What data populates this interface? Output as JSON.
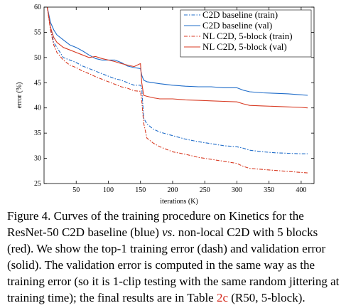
{
  "chart_data": {
    "type": "line",
    "xlabel": "iterations (K)",
    "ylabel": "error (%)",
    "xlim": [
      0,
      420
    ],
    "ylim": [
      25,
      60
    ],
    "x_ticks": [
      50,
      100,
      150,
      200,
      250,
      300,
      350,
      400
    ],
    "y_ticks": [
      25,
      30,
      35,
      40,
      45,
      50,
      55,
      60
    ],
    "grid": false,
    "legend_position": "top-right",
    "series": [
      {
        "name": "C2D baseline (train)",
        "color": "#1f6cc9",
        "style": "dashdot",
        "x": [
          5,
          10,
          15,
          20,
          30,
          40,
          50,
          60,
          70,
          80,
          90,
          100,
          110,
          120,
          130,
          140,
          150,
          152,
          155,
          160,
          170,
          180,
          200,
          220,
          240,
          260,
          280,
          300,
          310,
          320,
          340,
          360,
          380,
          400,
          410
        ],
        "y": [
          60,
          56,
          53,
          52,
          50,
          49.5,
          49,
          48.3,
          47.8,
          47.3,
          46.8,
          46.3,
          45.8,
          45.5,
          45,
          44.5,
          44.5,
          44,
          38,
          36.8,
          35.8,
          35.2,
          34.5,
          33.8,
          33.3,
          32.9,
          32.5,
          32.3,
          32,
          31.6,
          31.3,
          31.1,
          31,
          30.9,
          30.9
        ]
      },
      {
        "name": "C2D baseline (val)",
        "color": "#1f6cc9",
        "style": "solid",
        "x": [
          5,
          10,
          15,
          20,
          30,
          40,
          50,
          60,
          70,
          80,
          90,
          100,
          110,
          120,
          130,
          140,
          150,
          152,
          155,
          160,
          170,
          180,
          200,
          220,
          240,
          260,
          280,
          300,
          310,
          320,
          340,
          360,
          380,
          400,
          410
        ],
        "y": [
          60,
          57,
          55.5,
          54.5,
          53.5,
          52.5,
          52,
          51.3,
          50.5,
          49.8,
          49.5,
          49.5,
          49.5,
          49,
          48.3,
          48,
          47.8,
          46.5,
          45.5,
          45.2,
          45,
          44.8,
          44.5,
          44.3,
          44.2,
          44.2,
          44,
          44,
          43.5,
          43.2,
          43,
          42.9,
          42.8,
          42.6,
          42.5
        ]
      },
      {
        "name": "NL C2D, 5-block (train)",
        "color": "#d83a22",
        "style": "dashdot",
        "x": [
          5,
          10,
          15,
          20,
          30,
          40,
          50,
          60,
          70,
          80,
          90,
          100,
          110,
          120,
          130,
          140,
          150,
          152,
          155,
          160,
          170,
          180,
          200,
          220,
          240,
          260,
          280,
          300,
          310,
          320,
          340,
          360,
          380,
          400,
          410
        ],
        "y": [
          60,
          55.5,
          52.5,
          51,
          49.5,
          48.5,
          48,
          47.3,
          46.8,
          46.2,
          45.7,
          45.2,
          44.7,
          44.2,
          43.9,
          43.4,
          43.3,
          41.5,
          37,
          34,
          33,
          32.3,
          31.3,
          30.8,
          30.2,
          29.8,
          29.4,
          29,
          28.4,
          28,
          27.8,
          27.6,
          27.4,
          27.2,
          27.1
        ]
      },
      {
        "name": "NL C2D, 5-block (val)",
        "color": "#d83a22",
        "style": "solid",
        "x": [
          5,
          10,
          15,
          20,
          30,
          40,
          50,
          60,
          70,
          80,
          90,
          100,
          110,
          120,
          130,
          140,
          150,
          152,
          155,
          160,
          170,
          180,
          200,
          220,
          240,
          260,
          280,
          300,
          310,
          320,
          340,
          360,
          380,
          400,
          410
        ],
        "y": [
          60,
          56,
          54,
          53,
          52,
          51.5,
          51,
          50.5,
          50,
          50.2,
          49.8,
          49.5,
          49.2,
          48.8,
          48.5,
          48.2,
          48.8,
          45,
          42.5,
          42.3,
          42,
          41.8,
          41.8,
          41.6,
          41.5,
          41.4,
          41.3,
          41.2,
          40.8,
          40.5,
          40.4,
          40.3,
          40.2,
          40.1,
          40
        ]
      }
    ]
  },
  "caption": {
    "lead": "Figure 4. Curves of the training procedure on Kinetics for the ResNet-50 C2D baseline (blue) ",
    "vs": "vs",
    "middle": ". non-local C2D with 5 blocks (red). We show the top-1 training error (dash) and validation error (solid). The validation error is computed in the same way as the training error (so it is 1-clip testing with the same random jittering at training time); the final results are in Table ",
    "table_ref": "2c",
    "tail": " (R50, 5-block)."
  }
}
